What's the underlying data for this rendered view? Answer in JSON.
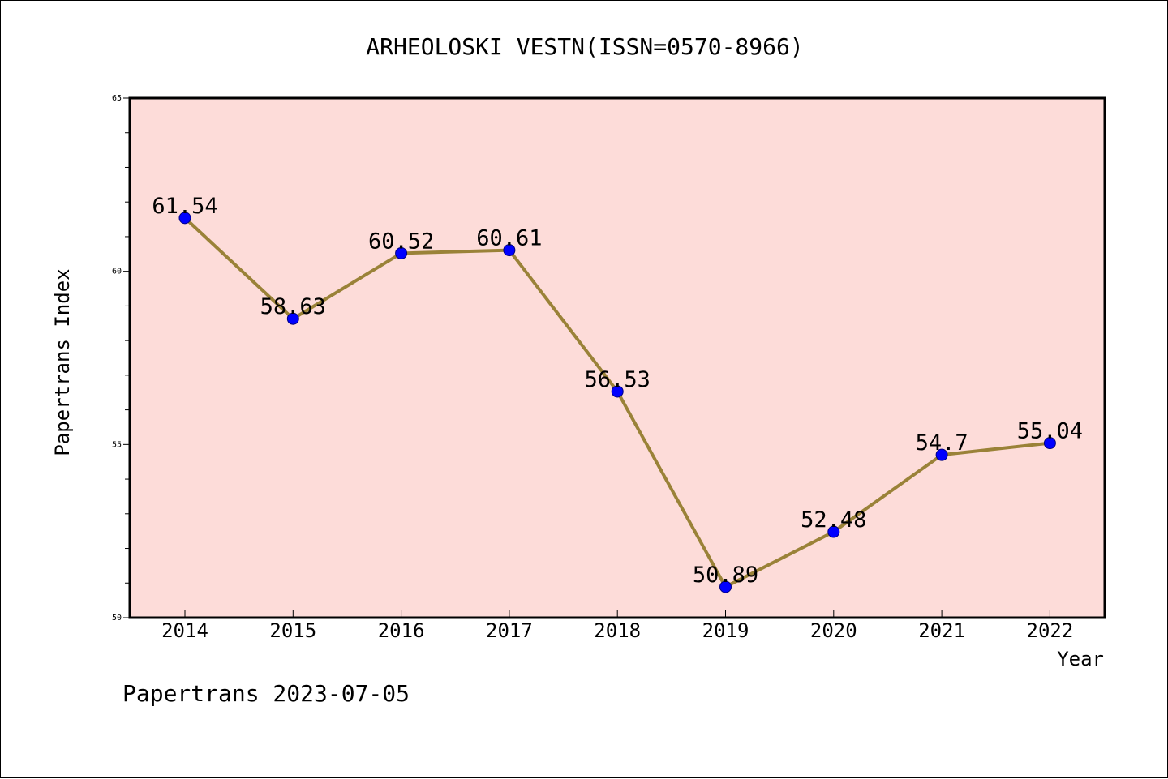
{
  "chart_data": {
    "type": "line",
    "title": "ARHEOLOSKI VESTN(ISSN=0570-8966)",
    "xlabel": "Year",
    "ylabel": "Papertrans Index",
    "categories": [
      "2014",
      "2015",
      "2016",
      "2017",
      "2018",
      "2019",
      "2020",
      "2021",
      "2022"
    ],
    "series": [
      {
        "values": [
          61.54,
          58.63,
          60.52,
          60.61,
          56.53,
          50.89,
          52.48,
          54.7,
          55.04
        ],
        "labels": [
          "61.54",
          "58.63",
          "60.52",
          "60.61",
          "56.53",
          "50.89",
          "52.48",
          "54.7",
          "55.04"
        ]
      }
    ],
    "ylim": [
      50,
      65
    ],
    "yticks": [
      "50",
      "55",
      "60",
      "65"
    ],
    "grid": false,
    "colors": {
      "line": "#9a8238",
      "marker": "#0000ff",
      "plot_background": "#fddcd9",
      "axes": "#000000"
    }
  },
  "footer": "Papertrans 2023-07-05"
}
